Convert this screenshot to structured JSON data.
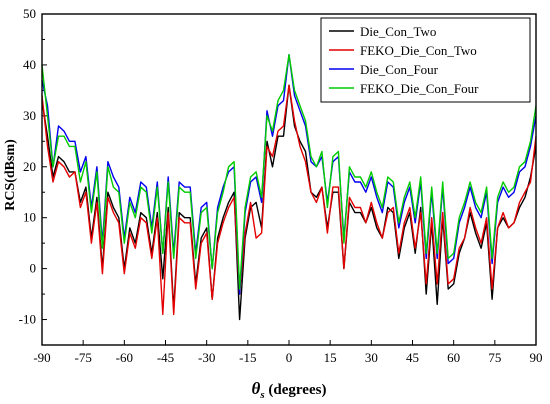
{
  "chart_data": {
    "type": "line",
    "xlabel_symbol": "θ",
    "xlabel_sub": "s",
    "xlabel_rest": " (degrees)",
    "ylabel": "RCS(dBsm)",
    "xlim": [
      -90,
      90
    ],
    "ylim": [
      -15,
      50
    ],
    "xticks": [
      -90,
      -75,
      -60,
      -45,
      -30,
      -15,
      0,
      15,
      30,
      45,
      60,
      75,
      90
    ],
    "yticks": [
      -10,
      0,
      10,
      20,
      30,
      40,
      50
    ],
    "legend_position": "top-right",
    "x": [
      -90,
      -88,
      -86,
      -84,
      -82,
      -80,
      -78,
      -76,
      -74,
      -72,
      -70,
      -68,
      -66,
      -64,
      -62,
      -60,
      -58,
      -56,
      -54,
      -52,
      -50,
      -48,
      -46,
      -44,
      -42,
      -40,
      -38,
      -36,
      -34,
      -32,
      -30,
      -28,
      -26,
      -24,
      -22,
      -20,
      -18,
      -16,
      -14,
      -12,
      -10,
      -8,
      -6,
      -4,
      -2,
      0,
      2,
      4,
      6,
      8,
      10,
      12,
      14,
      16,
      18,
      20,
      22,
      24,
      26,
      28,
      30,
      32,
      34,
      36,
      38,
      40,
      42,
      44,
      46,
      48,
      50,
      52,
      54,
      56,
      58,
      60,
      62,
      64,
      66,
      68,
      70,
      72,
      74,
      76,
      78,
      80,
      82,
      84,
      86,
      88,
      90
    ],
    "series": [
      {
        "name": "Die_Con_Two",
        "color": "#000000",
        "values": [
          33,
          26,
          18,
          22,
          21,
          19,
          19,
          13,
          16,
          6,
          14,
          0,
          15,
          12,
          10,
          0,
          8,
          5,
          11,
          10,
          3,
          11,
          -2,
          12,
          -8,
          11,
          10,
          10,
          -3,
          6,
          8,
          -6,
          6,
          10,
          13,
          15,
          -10,
          6,
          12,
          13,
          8,
          25,
          20,
          26,
          26,
          36,
          28,
          25,
          23,
          15,
          14,
          16,
          8,
          15,
          15,
          0,
          13,
          11,
          11,
          9,
          12,
          8,
          6,
          12,
          11,
          2,
          8,
          11,
          3,
          12,
          -5,
          9,
          -7,
          10,
          -4,
          -3,
          3,
          6,
          11,
          7,
          4,
          9,
          -6,
          8,
          10,
          8,
          9,
          12,
          14,
          18,
          24
        ]
      },
      {
        "name": "FEKO_Die_Con_Two",
        "color": "#e30000",
        "values": [
          34,
          24,
          17,
          21,
          20,
          18,
          19,
          12,
          15,
          5,
          13,
          -1,
          14,
          11,
          9,
          -1,
          7,
          4,
          10,
          9,
          2,
          10,
          -9,
          11,
          -9,
          10,
          9,
          9,
          -4,
          5,
          7,
          -6,
          5,
          9,
          12,
          14,
          -5,
          7,
          13,
          6,
          7,
          24,
          22,
          27,
          28,
          36,
          29,
          24,
          21,
          15,
          13,
          16,
          7,
          16,
          16,
          0,
          14,
          12,
          12,
          9,
          13,
          9,
          6,
          11,
          12,
          3,
          9,
          12,
          4,
          11,
          -3,
          10,
          -3,
          11,
          -3,
          -2,
          4,
          6,
          12,
          8,
          5,
          10,
          -4,
          8,
          11,
          8,
          9,
          13,
          15,
          17,
          26
        ]
      },
      {
        "name": "Die_Con_Four",
        "color": "#0000ee",
        "values": [
          37,
          32,
          20,
          28,
          27,
          25,
          25,
          19,
          22,
          12,
          20,
          5,
          21,
          18,
          16,
          6,
          14,
          11,
          17,
          16,
          8,
          17,
          3,
          18,
          3,
          17,
          16,
          16,
          3,
          12,
          13,
          0,
          12,
          16,
          19,
          20,
          -5,
          11,
          17,
          18,
          13,
          31,
          26,
          32,
          33,
          42,
          34,
          31,
          28,
          21,
          20,
          22,
          13,
          21,
          22,
          6,
          19,
          17,
          17,
          15,
          18,
          14,
          11,
          17,
          16,
          8,
          13,
          16,
          9,
          17,
          2,
          15,
          2,
          16,
          1,
          2,
          9,
          12,
          16,
          12,
          10,
          15,
          1,
          13,
          16,
          14,
          15,
          19,
          20,
          24,
          30
        ]
      },
      {
        "name": "FEKO_Die_Con_Four",
        "color": "#00cc00",
        "values": [
          40,
          30,
          20,
          26,
          26,
          24,
          24,
          17,
          21,
          11,
          19,
          4,
          20,
          16,
          15,
          5,
          13,
          10,
          16,
          15,
          7,
          16,
          3,
          17,
          2,
          16,
          15,
          15,
          2,
          11,
          12,
          0,
          11,
          15,
          20,
          21,
          -4,
          12,
          18,
          19,
          14,
          30,
          27,
          33,
          35,
          42,
          35,
          32,
          29,
          22,
          20,
          23,
          12,
          22,
          23,
          5,
          20,
          18,
          18,
          16,
          19,
          15,
          12,
          18,
          17,
          9,
          14,
          17,
          10,
          18,
          3,
          16,
          3,
          17,
          2,
          3,
          10,
          13,
          17,
          13,
          11,
          16,
          2,
          14,
          17,
          15,
          16,
          20,
          21,
          25,
          32
        ]
      }
    ]
  }
}
